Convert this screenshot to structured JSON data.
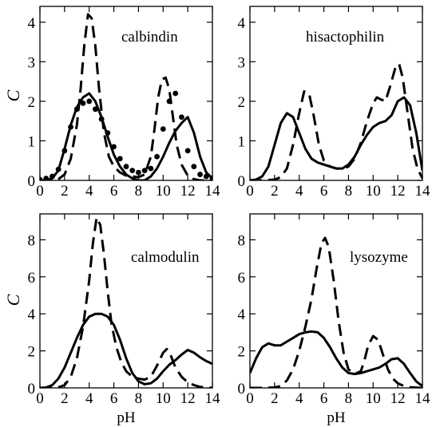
{
  "chart_data": [
    {
      "type": "line",
      "title": "calbindin",
      "xlabel": "",
      "ylabel": "C",
      "xlim": [
        0,
        14
      ],
      "ylim": [
        0,
        4.4
      ],
      "xticks": [
        0,
        2,
        4,
        6,
        8,
        10,
        12,
        14
      ],
      "yticks": [
        0,
        1,
        2,
        3,
        4
      ],
      "grid": false,
      "series": [
        {
          "style": "solid",
          "x": [
            0,
            0.5,
            1,
            1.5,
            2,
            2.5,
            3,
            3.5,
            4,
            4.5,
            5,
            5.5,
            6,
            6.5,
            7,
            7.5,
            8,
            8.5,
            9,
            9.5,
            10,
            10.5,
            11,
            11.5,
            12,
            12.5,
            13,
            13.5,
            14
          ],
          "y": [
            0.0,
            0.0,
            0.05,
            0.25,
            0.8,
            1.4,
            1.85,
            2.1,
            2.2,
            2.0,
            1.6,
            1.1,
            0.65,
            0.35,
            0.15,
            0.05,
            0.0,
            0.0,
            0.1,
            0.3,
            0.6,
            0.95,
            1.25,
            1.45,
            1.6,
            1.2,
            0.6,
            0.2,
            0.05
          ]
        },
        {
          "style": "dashed",
          "x": [
            0,
            1,
            1.5,
            2,
            2.5,
            3,
            3.3,
            3.6,
            3.9,
            4.2,
            4.5,
            4.8,
            5.2,
            5.6,
            6,
            6.5,
            7,
            7.5,
            8,
            8.5,
            9,
            9.3,
            9.6,
            9.9,
            10.2,
            10.5,
            10.8,
            11.1,
            11.5,
            12,
            12.5,
            13,
            14
          ],
          "y": [
            0.0,
            0.0,
            0.03,
            0.15,
            0.55,
            1.4,
            2.3,
            3.4,
            4.2,
            4.1,
            3.4,
            2.3,
            1.2,
            0.6,
            0.35,
            0.2,
            0.12,
            0.1,
            0.08,
            0.15,
            0.6,
            1.3,
            2.1,
            2.55,
            2.6,
            2.3,
            1.6,
            0.9,
            0.4,
            0.12,
            0.03,
            0.0,
            0.0
          ]
        },
        {
          "style": "dots",
          "x": [
            0,
            0.5,
            1,
            1.5,
            2,
            2.5,
            3,
            3.5,
            4,
            4.5,
            5,
            5.5,
            6,
            6.5,
            7,
            7.5,
            8,
            8.5,
            9,
            9.5,
            10,
            10.5,
            11,
            11.5,
            12,
            12.5,
            13,
            13.5,
            14
          ],
          "y": [
            0.02,
            0.05,
            0.1,
            0.28,
            0.75,
            1.35,
            1.8,
            1.95,
            2.0,
            1.8,
            1.55,
            1.2,
            0.85,
            0.55,
            0.35,
            0.25,
            0.2,
            0.25,
            0.3,
            0.6,
            1.3,
            2.0,
            2.2,
            1.6,
            0.75,
            0.35,
            0.15,
            0.1,
            0.05
          ]
        }
      ]
    },
    {
      "type": "line",
      "title": "hisactophilin",
      "xlabel": "",
      "ylabel": "",
      "xlim": [
        0,
        14
      ],
      "ylim": [
        0,
        4.4
      ],
      "xticks": [
        0,
        2,
        4,
        6,
        8,
        10,
        12,
        14
      ],
      "yticks": [
        0,
        1,
        2,
        3,
        4
      ],
      "grid": false,
      "series": [
        {
          "style": "solid",
          "x": [
            0,
            0.5,
            1,
            1.5,
            2,
            2.5,
            3,
            3.5,
            4,
            4.5,
            5,
            5.5,
            6,
            6.5,
            7,
            7.5,
            8,
            8.5,
            9,
            9.5,
            10,
            10.5,
            11,
            11.5,
            12,
            12.5,
            13,
            13.5,
            14
          ],
          "y": [
            0.0,
            0.02,
            0.1,
            0.35,
            0.9,
            1.45,
            1.7,
            1.6,
            1.2,
            0.8,
            0.55,
            0.45,
            0.4,
            0.35,
            0.3,
            0.3,
            0.4,
            0.6,
            0.9,
            1.15,
            1.35,
            1.45,
            1.5,
            1.65,
            2.0,
            2.1,
            1.9,
            1.2,
            0.25
          ]
        },
        {
          "style": "dashed",
          "x": [
            0,
            1,
            2,
            2.5,
            3,
            3.5,
            4,
            4.4,
            4.8,
            5.2,
            5.6,
            6,
            6.5,
            7,
            7.5,
            8,
            8.5,
            9,
            9.5,
            10,
            10.3,
            10.6,
            11,
            11.4,
            11.8,
            12.1,
            12.4,
            12.8,
            13.2,
            13.6,
            14
          ],
          "y": [
            0.0,
            0.0,
            0.02,
            0.08,
            0.3,
            0.9,
            1.7,
            2.25,
            2.2,
            1.6,
            0.9,
            0.5,
            0.35,
            0.3,
            0.3,
            0.35,
            0.55,
            0.95,
            1.5,
            1.95,
            2.1,
            2.05,
            2.0,
            2.4,
            2.85,
            2.95,
            2.6,
            1.7,
            0.8,
            0.3,
            0.05
          ]
        }
      ]
    },
    {
      "type": "line",
      "title": "calmodulin",
      "xlabel": "pH",
      "ylabel": "C",
      "xlim": [
        0,
        14
      ],
      "ylim": [
        0,
        9.4
      ],
      "xticks": [
        0,
        2,
        4,
        6,
        8,
        10,
        12,
        14
      ],
      "yticks": [
        0,
        2,
        4,
        6,
        8
      ],
      "grid": false,
      "series": [
        {
          "style": "solid",
          "x": [
            0,
            0.5,
            1,
            1.5,
            2,
            2.5,
            3,
            3.5,
            4,
            4.5,
            5,
            5.5,
            6,
            6.5,
            7,
            7.5,
            8,
            8.5,
            9,
            9.5,
            10,
            10.5,
            11,
            11.5,
            12,
            12.5,
            13,
            13.5,
            14
          ],
          "y": [
            0.0,
            0.02,
            0.15,
            0.5,
            1.1,
            1.9,
            2.7,
            3.4,
            3.85,
            4.0,
            4.0,
            3.85,
            3.4,
            2.6,
            1.6,
            0.8,
            0.35,
            0.2,
            0.25,
            0.5,
            0.9,
            1.25,
            1.5,
            1.8,
            2.05,
            1.9,
            1.65,
            1.45,
            1.3
          ]
        },
        {
          "style": "dashed",
          "x": [
            0,
            1,
            1.5,
            2,
            2.5,
            3,
            3.5,
            4,
            4.3,
            4.6,
            4.9,
            5.2,
            5.5,
            5.8,
            6.2,
            6.6,
            7,
            7.5,
            8,
            8.5,
            9,
            9.5,
            10,
            10.3,
            10.6,
            11,
            11.5,
            12,
            12.5,
            13,
            14
          ],
          "y": [
            0.0,
            0.0,
            0.03,
            0.15,
            0.6,
            1.6,
            3.3,
            5.8,
            7.8,
            9.2,
            8.8,
            7.2,
            5.2,
            3.5,
            2.2,
            1.4,
            0.9,
            0.6,
            0.5,
            0.45,
            0.6,
            1.2,
            1.9,
            2.1,
            1.8,
            1.1,
            0.6,
            0.3,
            0.15,
            0.05,
            0.0
          ]
        }
      ]
    },
    {
      "type": "line",
      "title": "lysozyme",
      "xlabel": "pH",
      "ylabel": "",
      "xlim": [
        0,
        14
      ],
      "ylim": [
        0,
        9.4
      ],
      "xticks": [
        0,
        2,
        4,
        6,
        8,
        10,
        12,
        14
      ],
      "yticks": [
        0,
        2,
        4,
        6,
        8
      ],
      "grid": false,
      "series": [
        {
          "style": "solid",
          "x": [
            0,
            0.5,
            1,
            1.5,
            2,
            2.5,
            3,
            3.5,
            4,
            4.5,
            5,
            5.5,
            6,
            6.5,
            7,
            7.5,
            8,
            8.5,
            9,
            9.5,
            10,
            10.5,
            11,
            11.5,
            12,
            12.5,
            13,
            13.5,
            14
          ],
          "y": [
            0.8,
            1.6,
            2.2,
            2.4,
            2.3,
            2.3,
            2.5,
            2.7,
            2.9,
            3.0,
            3.05,
            3.0,
            2.7,
            2.2,
            1.6,
            1.1,
            0.8,
            0.75,
            0.8,
            0.9,
            1.0,
            1.1,
            1.3,
            1.55,
            1.6,
            1.3,
            0.8,
            0.35,
            0.1
          ]
        },
        {
          "style": "dashed",
          "x": [
            0,
            1,
            2,
            2.5,
            3,
            3.5,
            4,
            4.5,
            5,
            5.4,
            5.8,
            6.1,
            6.4,
            6.8,
            7.2,
            7.6,
            8,
            8.5,
            9,
            9.3,
            9.6,
            10,
            10.4,
            10.8,
            11.2,
            11.6,
            12,
            12.5,
            13,
            14
          ],
          "y": [
            0.0,
            0.0,
            0.02,
            0.1,
            0.4,
            1.0,
            2.0,
            3.3,
            4.8,
            6.4,
            7.8,
            8.1,
            7.6,
            5.8,
            3.6,
            1.9,
            1.0,
            0.75,
            0.9,
            1.5,
            2.3,
            2.8,
            2.6,
            1.8,
            1.0,
            0.5,
            0.25,
            0.1,
            0.03,
            0.0
          ]
        }
      ]
    }
  ]
}
